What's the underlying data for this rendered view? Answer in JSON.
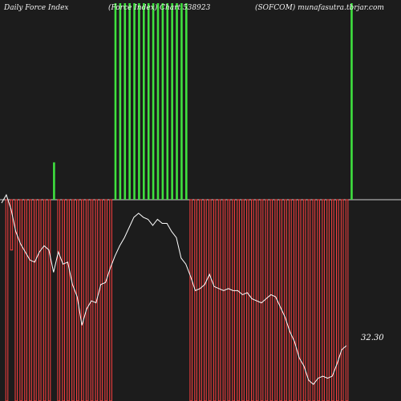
{
  "header": {
    "left_title": "Daily Force  Index",
    "center_title": "(Force Index) Chart",
    "code": "538923",
    "right_title": "(SOFCOM) munafasutra.tbrjar.com"
  },
  "last_value_label": "32.30",
  "colors": {
    "background": "#1c1c1c",
    "positive_bar": "#3fe03f",
    "negative_bar_outline": "#ff4040",
    "line": "#ffffff",
    "zero_line": "#d0d0d0"
  },
  "chart_data": {
    "type": "bar",
    "title": "Daily Force Index",
    "zero_baseline": true,
    "bars": [
      {
        "sign": "neg",
        "magnitude": 1.0
      },
      {
        "sign": "neg",
        "magnitude": 0.25
      },
      {
        "sign": "neg",
        "magnitude": 1.0
      },
      {
        "sign": "neg",
        "magnitude": 1.0
      },
      {
        "sign": "neg",
        "magnitude": 1.0
      },
      {
        "sign": "neg",
        "magnitude": 1.0
      },
      {
        "sign": "neg",
        "magnitude": 1.0
      },
      {
        "sign": "neg",
        "magnitude": 1.0
      },
      {
        "sign": "neg",
        "magnitude": 1.0
      },
      {
        "sign": "neg",
        "magnitude": 1.0
      },
      {
        "sign": "pos",
        "magnitude": 0.19
      },
      {
        "sign": "neg",
        "magnitude": 1.0
      },
      {
        "sign": "neg",
        "magnitude": 1.0
      },
      {
        "sign": "neg",
        "magnitude": 1.0
      },
      {
        "sign": "neg",
        "magnitude": 1.0
      },
      {
        "sign": "neg",
        "magnitude": 1.0
      },
      {
        "sign": "neg",
        "magnitude": 1.0
      },
      {
        "sign": "neg",
        "magnitude": 1.0
      },
      {
        "sign": "neg",
        "magnitude": 1.0
      },
      {
        "sign": "neg",
        "magnitude": 1.0
      },
      {
        "sign": "neg",
        "magnitude": 1.0
      },
      {
        "sign": "neg",
        "magnitude": 1.0
      },
      {
        "sign": "neg",
        "magnitude": 1.0
      },
      {
        "sign": "pos",
        "magnitude": 1.0
      },
      {
        "sign": "pos",
        "magnitude": 1.0
      },
      {
        "sign": "pos",
        "magnitude": 1.0
      },
      {
        "sign": "pos",
        "magnitude": 1.0
      },
      {
        "sign": "pos",
        "magnitude": 1.0
      },
      {
        "sign": "pos",
        "magnitude": 1.0
      },
      {
        "sign": "pos",
        "magnitude": 1.0
      },
      {
        "sign": "pos",
        "magnitude": 1.0
      },
      {
        "sign": "pos",
        "magnitude": 1.0
      },
      {
        "sign": "pos",
        "magnitude": 1.0
      },
      {
        "sign": "pos",
        "magnitude": 1.0
      },
      {
        "sign": "pos",
        "magnitude": 1.0
      },
      {
        "sign": "pos",
        "magnitude": 1.0
      },
      {
        "sign": "pos",
        "magnitude": 1.0
      },
      {
        "sign": "pos",
        "magnitude": 1.0
      },
      {
        "sign": "pos",
        "magnitude": 1.0
      },
      {
        "sign": "neg",
        "magnitude": 1.0
      },
      {
        "sign": "neg",
        "magnitude": 1.0
      },
      {
        "sign": "neg",
        "magnitude": 1.0
      },
      {
        "sign": "neg",
        "magnitude": 1.0
      },
      {
        "sign": "neg",
        "magnitude": 1.0
      },
      {
        "sign": "neg",
        "magnitude": 1.0
      },
      {
        "sign": "neg",
        "magnitude": 1.0
      },
      {
        "sign": "neg",
        "magnitude": 1.0
      },
      {
        "sign": "neg",
        "magnitude": 1.0
      },
      {
        "sign": "neg",
        "magnitude": 1.0
      },
      {
        "sign": "neg",
        "magnitude": 1.0
      },
      {
        "sign": "neg",
        "magnitude": 1.0
      },
      {
        "sign": "neg",
        "magnitude": 1.0
      },
      {
        "sign": "neg",
        "magnitude": 1.0
      },
      {
        "sign": "neg",
        "magnitude": 1.0
      },
      {
        "sign": "neg",
        "magnitude": 1.0
      },
      {
        "sign": "neg",
        "magnitude": 1.0
      },
      {
        "sign": "neg",
        "magnitude": 1.0
      },
      {
        "sign": "neg",
        "magnitude": 1.0
      },
      {
        "sign": "neg",
        "magnitude": 1.0
      },
      {
        "sign": "neg",
        "magnitude": 1.0
      },
      {
        "sign": "neg",
        "magnitude": 1.0
      },
      {
        "sign": "neg",
        "magnitude": 1.0
      },
      {
        "sign": "neg",
        "magnitude": 1.0
      },
      {
        "sign": "neg",
        "magnitude": 1.0
      },
      {
        "sign": "neg",
        "magnitude": 1.0
      },
      {
        "sign": "neg",
        "magnitude": 1.0
      },
      {
        "sign": "neg",
        "magnitude": 1.0
      },
      {
        "sign": "neg",
        "magnitude": 1.0
      },
      {
        "sign": "neg",
        "magnitude": 1.0
      },
      {
        "sign": "neg",
        "magnitude": 1.0
      },
      {
        "sign": "neg",
        "magnitude": 1.0
      },
      {
        "sign": "neg",
        "magnitude": 1.0
      },
      {
        "sign": "neg",
        "magnitude": 1.0
      },
      {
        "sign": "pos",
        "magnitude": 1.0
      }
    ],
    "line": {
      "name": "",
      "values": [
        0.96,
        1.0,
        0.93,
        0.82,
        0.76,
        0.72,
        0.68,
        0.67,
        0.72,
        0.75,
        0.73,
        0.62,
        0.72,
        0.66,
        0.67,
        0.56,
        0.5,
        0.36,
        0.44,
        0.48,
        0.47,
        0.56,
        0.57,
        0.64,
        0.7,
        0.75,
        0.79,
        0.84,
        0.89,
        0.91,
        0.89,
        0.88,
        0.85,
        0.88,
        0.86,
        0.86,
        0.82,
        0.79,
        0.69,
        0.66,
        0.6,
        0.53,
        0.54,
        0.56,
        0.61,
        0.55,
        0.54,
        0.53,
        0.54,
        0.53,
        0.53,
        0.51,
        0.52,
        0.49,
        0.48,
        0.47,
        0.49,
        0.51,
        0.5,
        0.45,
        0.4,
        0.33,
        0.28,
        0.2,
        0.16,
        0.09,
        0.07,
        0.1,
        0.11,
        0.1,
        0.11,
        0.17,
        0.24,
        0.26
      ]
    }
  }
}
